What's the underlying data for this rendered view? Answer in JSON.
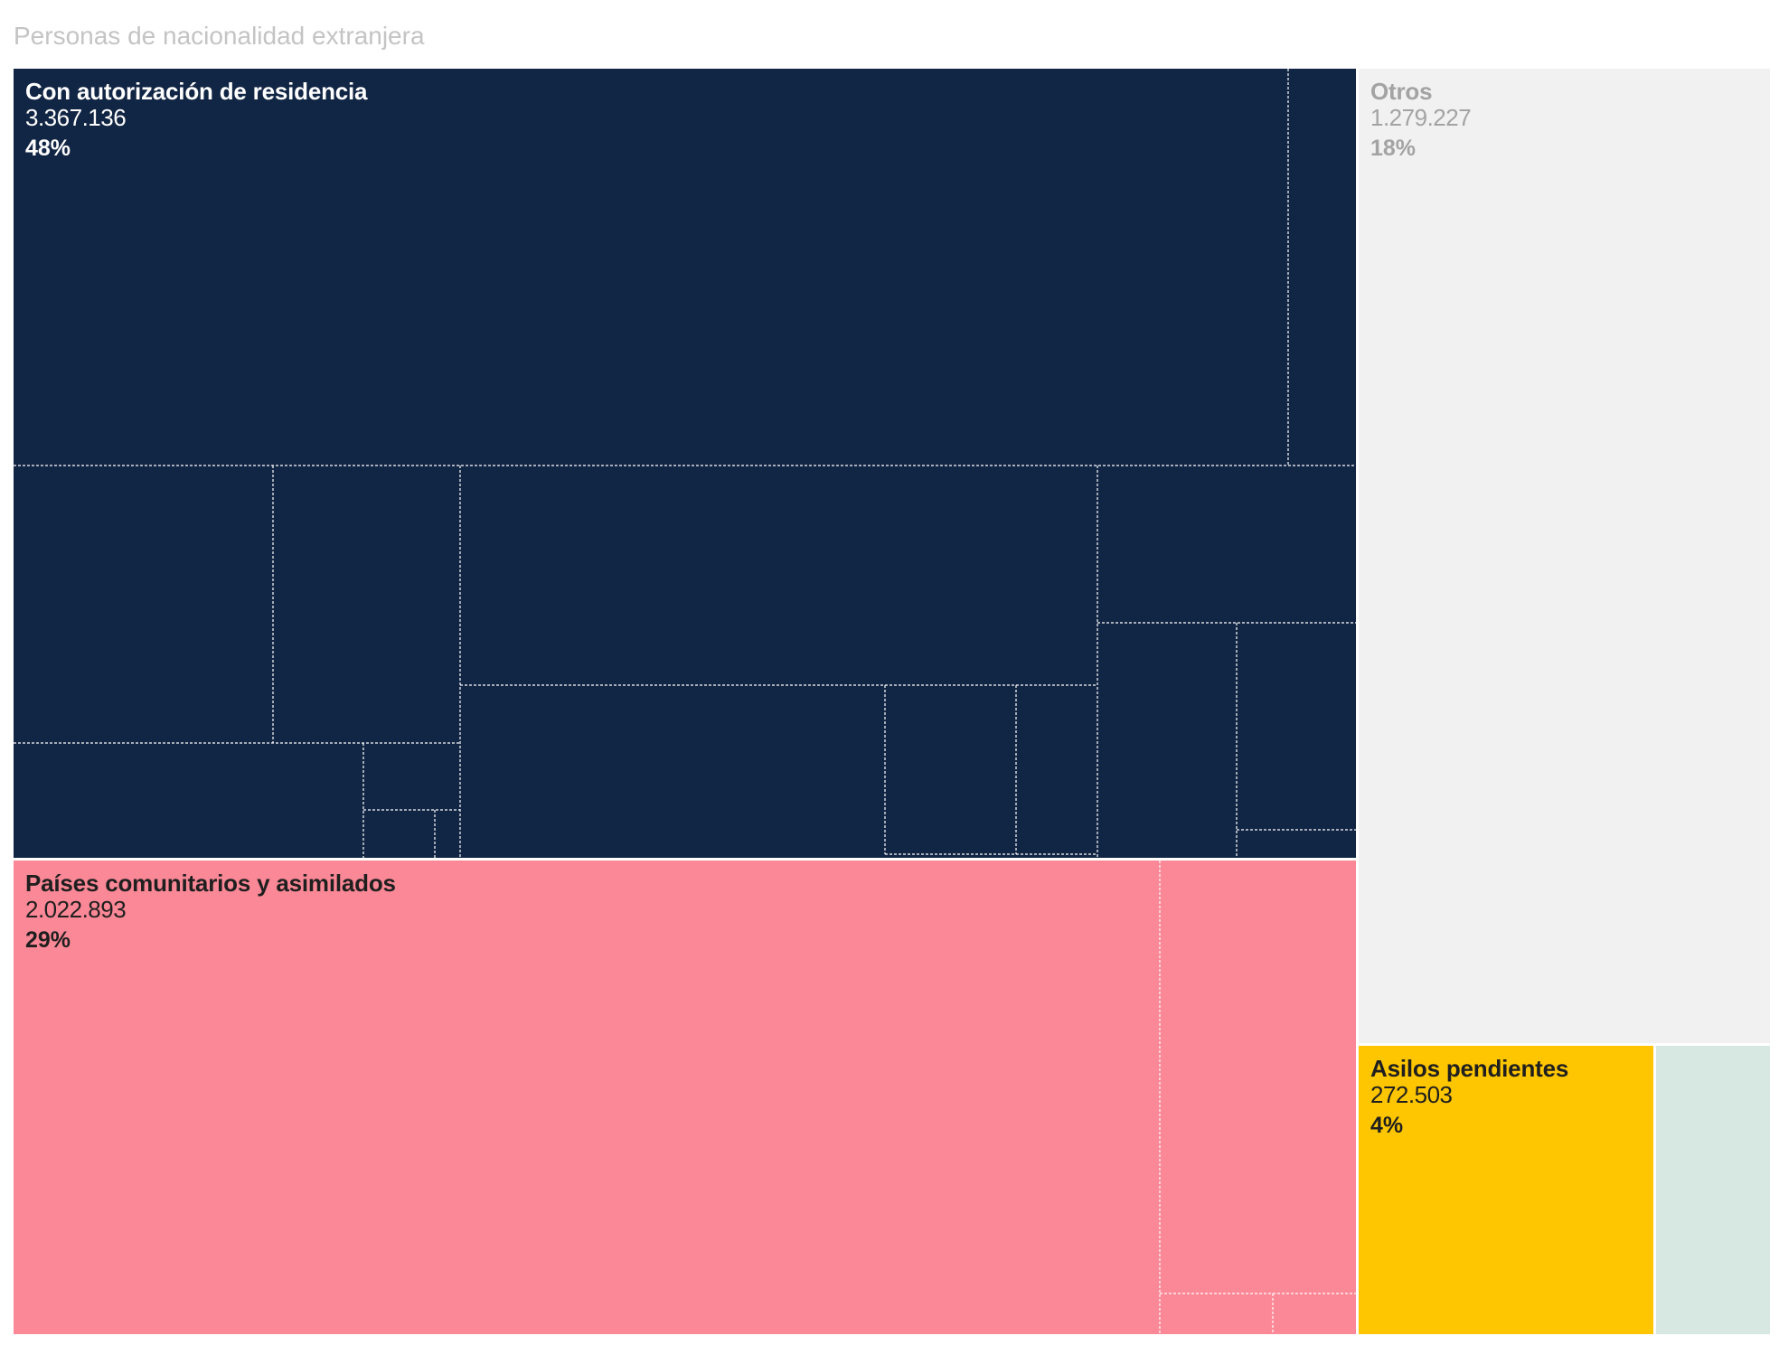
{
  "chart_data": {
    "type": "treemap",
    "title": "Personas de nacionalidad extranjera",
    "groups": [
      {
        "name": "Con autorización de residencia",
        "value": 3367136,
        "value_label": "3.367.136",
        "percent_label": "48%",
        "color": "#112544",
        "text_color": "#ffffff"
      },
      {
        "name": "Países comunitarios y asimilados",
        "value": 2022893,
        "value_label": "2.022.893",
        "percent_label": "29%",
        "color": "#fb8896",
        "text_color": "#1f1f1f"
      },
      {
        "name": "Otros",
        "value": 1279227,
        "value_label": "1.279.227",
        "percent_label": "18%",
        "color": "#f1f1f1",
        "text_color": "#a3a3a3"
      },
      {
        "name": "Asilos pendientes",
        "value": 272503,
        "value_label": "272.503",
        "percent_label": "4%",
        "color": "#fec600",
        "text_color": "#1f1f1f"
      },
      {
        "name": "",
        "value": 75000,
        "value_label": "",
        "percent_label": "",
        "color": "#d7e7e1",
        "text_color": "#1f1f1f"
      }
    ]
  }
}
